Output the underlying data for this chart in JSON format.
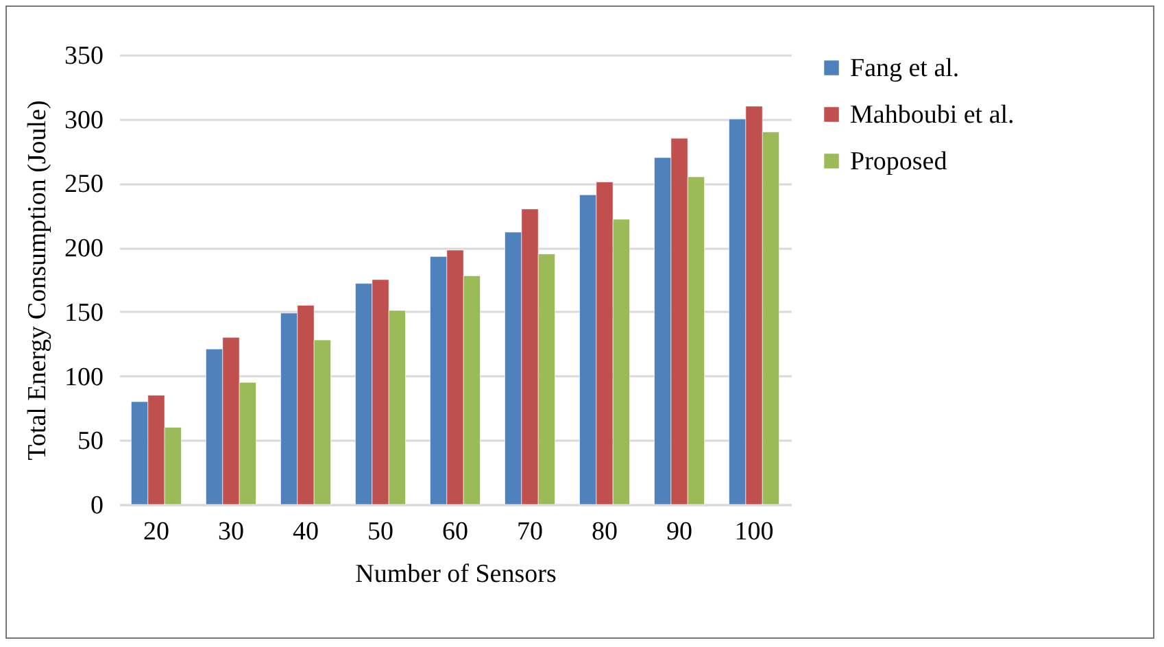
{
  "chart_data": {
    "type": "bar",
    "xlabel": "Number of Sensors",
    "ylabel": "Total Energy Consumption (Joule)",
    "categories": [
      "20",
      "30",
      "40",
      "50",
      "60",
      "70",
      "80",
      "90",
      "100"
    ],
    "series": [
      {
        "name": "Fang et al.",
        "color": "#4f81bd",
        "values": [
          80,
          121,
          149,
          172,
          193,
          212,
          241,
          270,
          300
        ]
      },
      {
        "name": "Mahboubi et al.",
        "color": "#c0504d",
        "values": [
          85,
          130,
          155,
          175,
          198,
          230,
          251,
          285,
          310
        ]
      },
      {
        "name": "Proposed",
        "color": "#9bbb59",
        "values": [
          60,
          95,
          128,
          151,
          178,
          195,
          222,
          255,
          290
        ]
      }
    ],
    "ylim": [
      0,
      350
    ],
    "yticks": [
      0,
      50,
      100,
      150,
      200,
      250,
      300,
      350
    ],
    "grid": "y",
    "legend": "right"
  }
}
